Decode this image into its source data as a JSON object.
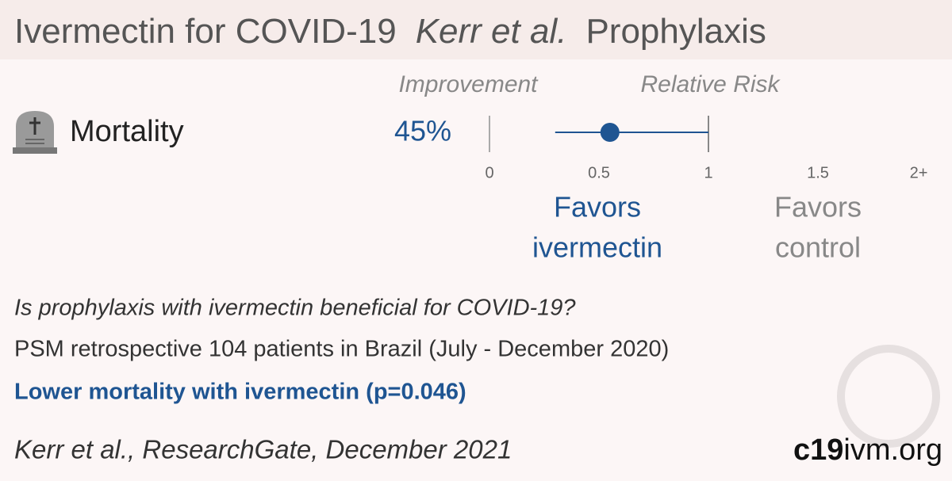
{
  "chart_data": {
    "type": "forest",
    "title": "Ivermectin for COVID-19",
    "study": "Kerr et al.",
    "subtitle": "Prophylaxis",
    "columns": [
      "Improvement",
      "Relative Risk"
    ],
    "rows": [
      {
        "label": "Mortality",
        "improvement": 45,
        "improvement_label": "45%",
        "rr": 0.55,
        "ci": [
          0.3,
          1.0
        ]
      }
    ],
    "xlim": [
      0,
      2
    ],
    "xticks": [
      0,
      0.5,
      1,
      1.5,
      {
        "value": 2,
        "label": "2+"
      }
    ],
    "reference": 1,
    "favors": [
      [
        "Favors",
        "ivermectin"
      ],
      [
        "Favors",
        "control"
      ]
    ],
    "color": "#1f5592"
  },
  "footer": {
    "question": "Is prophylaxis with ivermectin beneficial for COVID-19?",
    "design": "PSM retrospective 104 patients in Brazil (July - December 2020)",
    "conclusion": "Lower mortality with ivermectin (p=0.046)",
    "citation": "Kerr et al., ResearchGate, December 2021",
    "brand": [
      "c19",
      "ivm.org"
    ]
  }
}
